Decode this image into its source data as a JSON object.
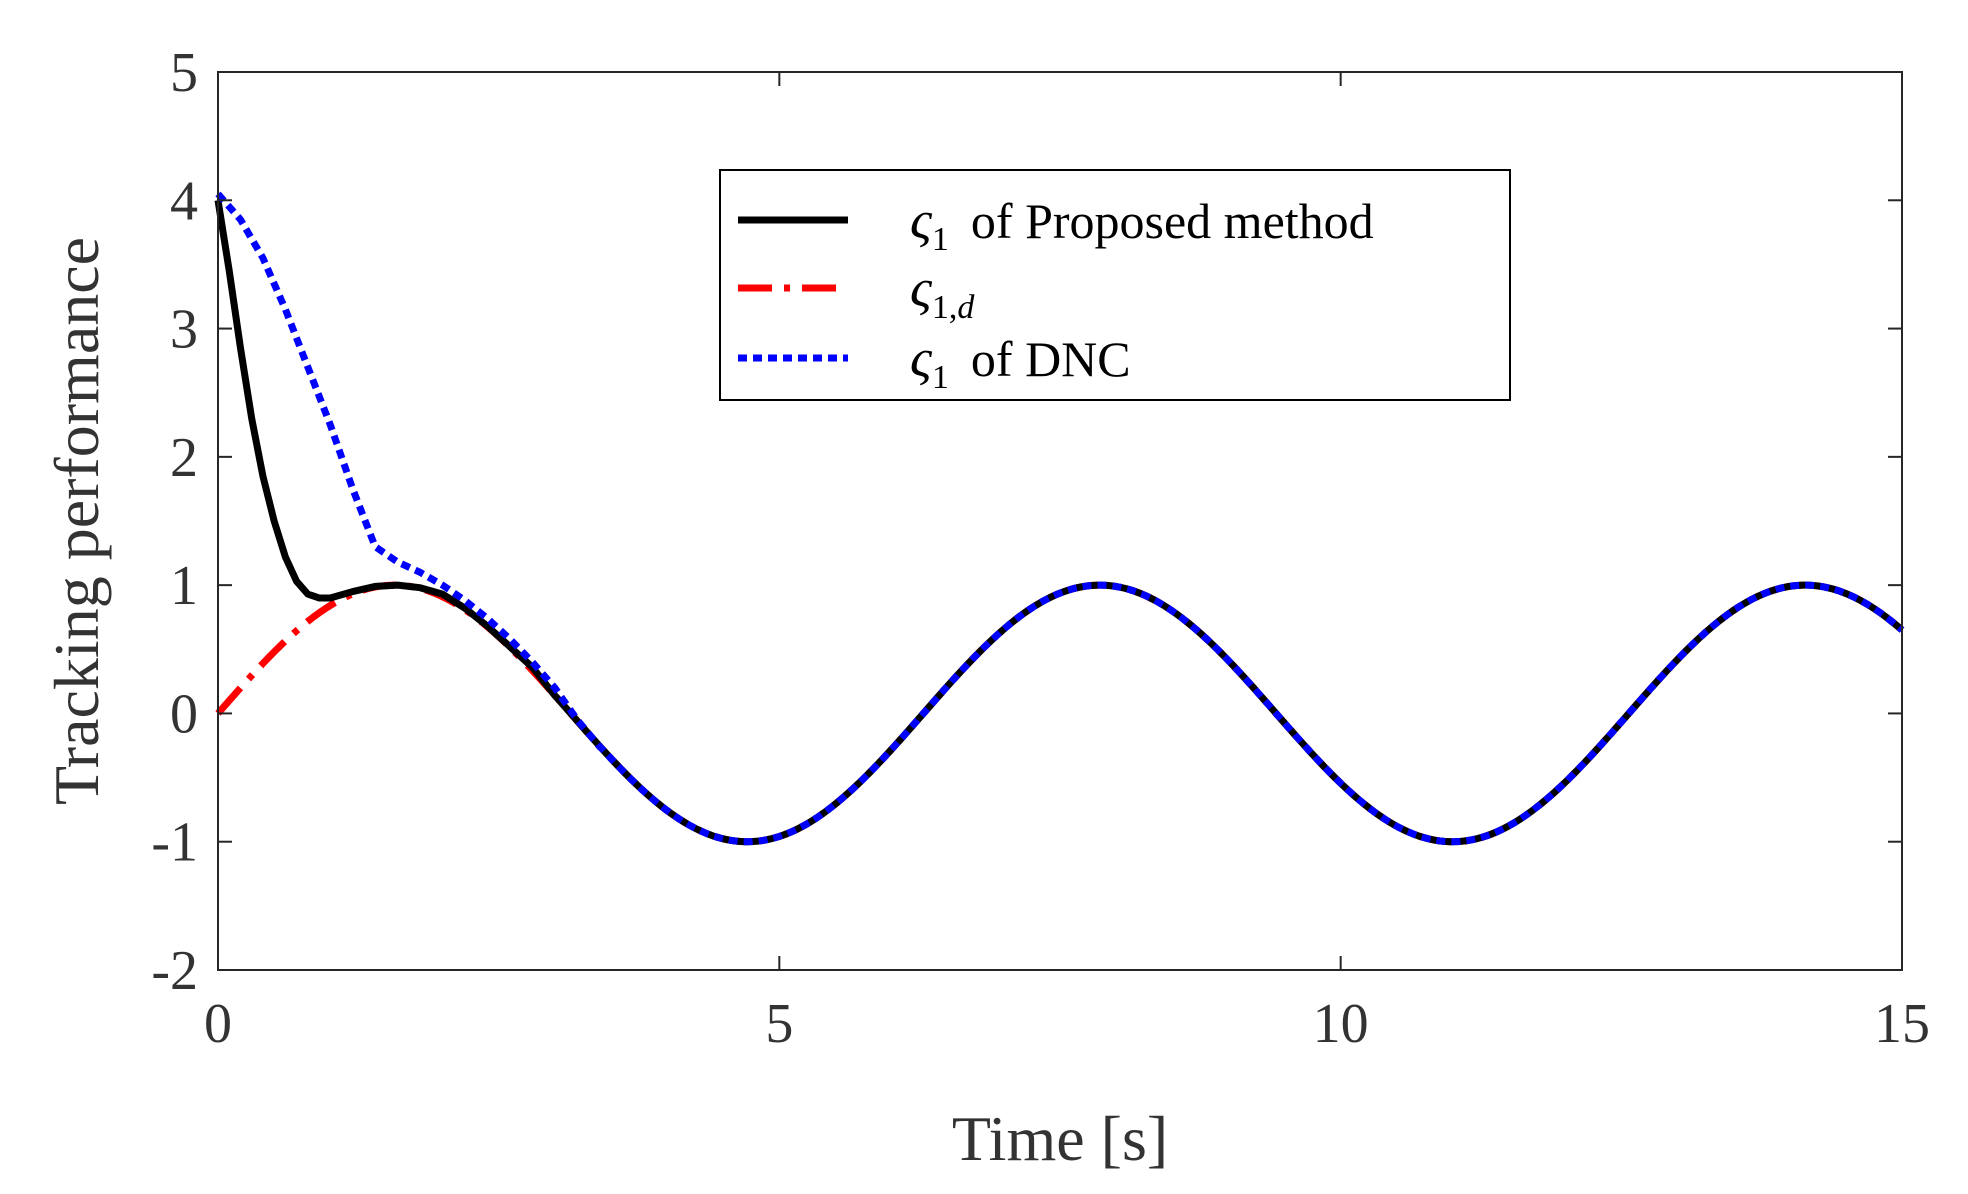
{
  "chart_data": {
    "type": "line",
    "title": "",
    "xlabel": "Time [s]",
    "ylabel": "Tracking performance",
    "xlim": [
      0,
      15
    ],
    "ylim": [
      -2,
      5
    ],
    "xticks": [
      0,
      5,
      10,
      15
    ],
    "xtick_labels": [
      "0",
      "5",
      "10",
      "15"
    ],
    "yticks": [
      -2,
      -1,
      0,
      1,
      2,
      3,
      4,
      5
    ],
    "ytick_labels": [
      "-2",
      "-1",
      "0",
      "1",
      "2",
      "3",
      "4",
      "5"
    ],
    "grid": false,
    "legend_position": "top-center",
    "series": [
      {
        "name": "ς1 of Proposed method",
        "legend_symbol": "ς",
        "legend_subscript": "1",
        "legend_text": "of Proposed method",
        "color": "#000000",
        "style": "solid",
        "x": [
          0,
          0.1,
          0.2,
          0.3,
          0.4,
          0.5,
          0.6,
          0.7,
          0.8,
          0.9,
          1.0,
          1.2,
          1.4,
          1.6,
          1.8,
          2.0,
          2.2,
          2.4,
          2.6,
          2.8,
          3.0
        ],
        "y": [
          4.0,
          3.45,
          2.85,
          2.3,
          1.85,
          1.5,
          1.22,
          1.03,
          0.93,
          0.9,
          0.9,
          0.95,
          0.99,
          1.0,
          0.98,
          0.93,
          0.82,
          0.68,
          0.52,
          0.36,
          0.14
        ],
        "follows_reference_after": 3.0
      },
      {
        "name": "ς1,d",
        "legend_symbol": "ς",
        "legend_subscript": "1,",
        "legend_subscript_italic": "d",
        "legend_text": "",
        "color": "#ff0000",
        "style": "dashdot",
        "function": "sin(t)",
        "x_range": [
          0,
          15
        ]
      },
      {
        "name": "ς1 of DNC",
        "legend_symbol": "ς",
        "legend_subscript": "1",
        "legend_text": "of DNC",
        "color": "#0000ff",
        "style": "dotted",
        "x": [
          0,
          0.2,
          0.4,
          0.6,
          0.8,
          1.0,
          1.2,
          1.4,
          1.6,
          1.8,
          2.0,
          2.2,
          2.4,
          2.6,
          2.8,
          3.0,
          3.2,
          3.4
        ],
        "y": [
          4.05,
          3.85,
          3.55,
          3.15,
          2.7,
          2.25,
          1.75,
          1.3,
          1.18,
          1.1,
          1.0,
          0.88,
          0.74,
          0.58,
          0.4,
          0.2,
          -0.05,
          -0.26
        ],
        "follows_reference_after": 3.4
      }
    ]
  }
}
